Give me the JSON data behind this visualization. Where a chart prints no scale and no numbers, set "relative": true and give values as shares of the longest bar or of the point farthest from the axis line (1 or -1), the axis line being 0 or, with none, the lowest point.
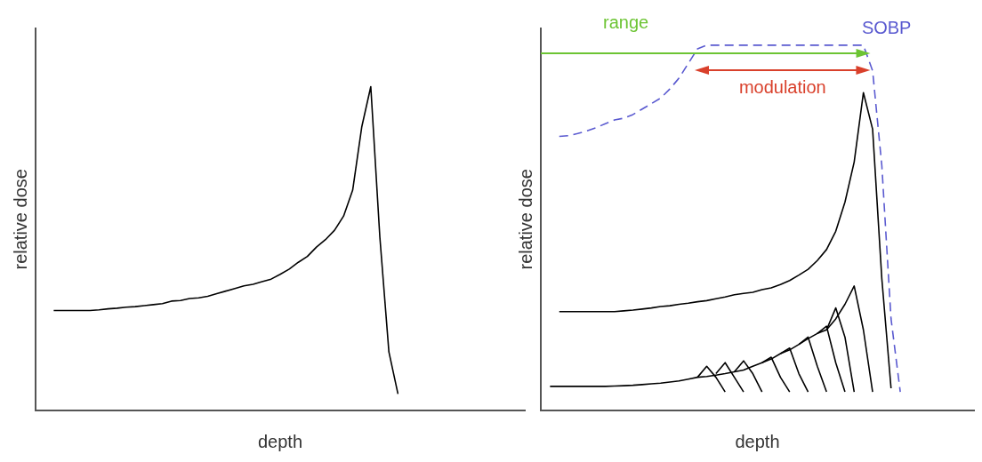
{
  "chart_data": [
    {
      "type": "line",
      "relative": true,
      "xlabel": "depth",
      "ylabel": "relative dose",
      "legend": false,
      "grid": false,
      "marker": "none",
      "categories": [
        null,
        null,
        null,
        null,
        null,
        null,
        null,
        null,
        null,
        null,
        null,
        null,
        null,
        null,
        null,
        null,
        null,
        null,
        null,
        null,
        null,
        null,
        null,
        null,
        null,
        null,
        null,
        null,
        null,
        null,
        null,
        null,
        null,
        null,
        null,
        null,
        null,
        null,
        null,
        null,
        null,
        null,
        null,
        null,
        null,
        null,
        null,
        null,
        null,
        null,
        null,
        null,
        null,
        null,
        null
      ],
      "series": [
        {
          "color": "#000000",
          "values": [
            null,
            null,
            0.308,
            0.308,
            0.308,
            0.308,
            0.308,
            0.31,
            0.313,
            0.315,
            0.318,
            0.32,
            0.323,
            0.326,
            0.329,
            0.337,
            0.339,
            0.345,
            0.347,
            0.352,
            0.36,
            0.368,
            0.376,
            0.384,
            0.389,
            0.397,
            0.405,
            0.42,
            0.436,
            0.457,
            0.475,
            0.504,
            0.527,
            0.556,
            0.6,
            0.68,
            0.875,
            1,
            0.535,
            0.18,
            0.05,
            null,
            null,
            null,
            null,
            null,
            null,
            null,
            null,
            null,
            null,
            null,
            null,
            null,
            null
          ]
        }
      ]
    },
    {
      "type": "line",
      "relative": true,
      "xlabel": "depth",
      "ylabel": "relative dose",
      "legend": false,
      "grid": false,
      "marker": "none",
      "annotations": [
        "range",
        "modulation"
      ],
      "categories": [
        null,
        null,
        null,
        null,
        null,
        null,
        null,
        null,
        null,
        null,
        null,
        null,
        null,
        null,
        null,
        null,
        null,
        null,
        null,
        null,
        null,
        null,
        null,
        null,
        null,
        null,
        null,
        null,
        null,
        null,
        null,
        null,
        null,
        null,
        null,
        null,
        null,
        null,
        null,
        null,
        null,
        null,
        null,
        null,
        null,
        null,
        null,
        null
      ],
      "series": [
        {
          "name": "SOBP",
          "color": "#5a5ad0",
          "line_style": "dashed",
          "values": [
            null,
            null,
            0.75,
            0.752,
            0.758,
            0.765,
            0.774,
            0.785,
            0.795,
            0.8,
            0.81,
            0.825,
            0.84,
            0.855,
            0.88,
            0.91,
            0.95,
            0.99,
            1,
            1,
            1,
            1,
            1,
            1,
            1,
            1,
            1,
            1,
            1,
            1,
            1,
            1,
            1,
            1,
            1,
            1,
            0.93,
            0.67,
            0.25,
            0.05,
            null,
            null,
            null,
            null,
            null,
            null,
            null,
            null
          ]
        },
        {
          "color": "#000000",
          "values": [
            null,
            null,
            0.27,
            0.27,
            0.27,
            0.27,
            0.27,
            0.27,
            0.27,
            0.272,
            0.274,
            0.277,
            0.28,
            0.284,
            0.286,
            0.29,
            0.293,
            0.297,
            0.3,
            0.305,
            0.31,
            0.316,
            0.32,
            0.323,
            0.33,
            0.335,
            0.344,
            0.355,
            0.37,
            0.386,
            0.41,
            0.44,
            0.49,
            0.57,
            0.68,
            0.87,
            0.77,
            0.36,
            0.06,
            null,
            null,
            null,
            null,
            null,
            null,
            null,
            null,
            null
          ]
        },
        {
          "color": "#000000",
          "values": [
            null,
            0.065,
            0.065,
            0.065,
            0.065,
            0.065,
            0.065,
            0.065,
            0.066,
            0.067,
            0.068,
            0.07,
            0.072,
            0.074,
            0.077,
            0.08,
            0.085,
            0.09,
            0.092,
            0.096,
            0.1,
            0.105,
            0.11,
            0.12,
            0.13,
            0.14,
            0.155,
            0.165,
            0.18,
            0.196,
            0.21,
            0.22,
            0.25,
            0.29,
            0.34,
            0.22,
            0.05,
            null,
            null,
            null,
            null,
            null,
            null,
            null,
            null,
            null,
            null,
            null
          ]
        },
        {
          "color": "#000000",
          "values": [
            null,
            null,
            null,
            null,
            null,
            null,
            null,
            null,
            null,
            null,
            null,
            null,
            null,
            null,
            null,
            null,
            null,
            0.09,
            0.12,
            0.09,
            0.05,
            null,
            null,
            null,
            null,
            null,
            null,
            null,
            null,
            null,
            null,
            null,
            null,
            null,
            null,
            null,
            null,
            null,
            null,
            null,
            null,
            null,
            null,
            null,
            null,
            null,
            null,
            null
          ]
        },
        {
          "color": "#000000",
          "values": [
            null,
            null,
            null,
            null,
            null,
            null,
            null,
            null,
            null,
            null,
            null,
            null,
            null,
            null,
            null,
            null,
            null,
            null,
            null,
            0.1,
            0.13,
            0.09,
            0.05,
            null,
            null,
            null,
            null,
            null,
            null,
            null,
            null,
            null,
            null,
            null,
            null,
            null,
            null,
            null,
            null,
            null,
            null,
            null,
            null,
            null,
            null,
            null,
            null,
            null
          ]
        },
        {
          "color": "#000000",
          "values": [
            null,
            null,
            null,
            null,
            null,
            null,
            null,
            null,
            null,
            null,
            null,
            null,
            null,
            null,
            null,
            null,
            null,
            null,
            null,
            null,
            null,
            0.105,
            0.135,
            0.1,
            0.05,
            null,
            null,
            null,
            null,
            null,
            null,
            null,
            null,
            null,
            null,
            null,
            null,
            null,
            null,
            null,
            null,
            null,
            null,
            null,
            null,
            null,
            null,
            null
          ]
        },
        {
          "color": "#000000",
          "values": [
            null,
            null,
            null,
            null,
            null,
            null,
            null,
            null,
            null,
            null,
            null,
            null,
            null,
            null,
            null,
            null,
            null,
            null,
            null,
            null,
            null,
            null,
            null,
            null,
            0.13,
            0.145,
            0.09,
            0.05,
            null,
            null,
            null,
            null,
            null,
            null,
            null,
            null,
            null,
            null,
            null,
            null,
            null,
            null,
            null,
            null,
            null,
            null,
            null,
            null
          ]
        },
        {
          "color": "#000000",
          "values": [
            null,
            null,
            null,
            null,
            null,
            null,
            null,
            null,
            null,
            null,
            null,
            null,
            null,
            null,
            null,
            null,
            null,
            null,
            null,
            null,
            null,
            null,
            null,
            null,
            null,
            null,
            0.155,
            0.17,
            0.1,
            0.05,
            null,
            null,
            null,
            null,
            null,
            null,
            null,
            null,
            null,
            null,
            null,
            null,
            null,
            null,
            null,
            null,
            null,
            null
          ]
        },
        {
          "color": "#000000",
          "values": [
            null,
            null,
            null,
            null,
            null,
            null,
            null,
            null,
            null,
            null,
            null,
            null,
            null,
            null,
            null,
            null,
            null,
            null,
            null,
            null,
            null,
            null,
            null,
            null,
            null,
            null,
            null,
            null,
            0.18,
            0.2,
            0.12,
            0.05,
            null,
            null,
            null,
            null,
            null,
            null,
            null,
            null,
            null,
            null,
            null,
            null,
            null,
            null,
            null,
            null
          ]
        },
        {
          "color": "#000000",
          "values": [
            null,
            null,
            null,
            null,
            null,
            null,
            null,
            null,
            null,
            null,
            null,
            null,
            null,
            null,
            null,
            null,
            null,
            null,
            null,
            null,
            null,
            null,
            null,
            null,
            null,
            null,
            null,
            null,
            null,
            null,
            0.21,
            0.23,
            0.13,
            0.05,
            null,
            null,
            null,
            null,
            null,
            null,
            null,
            null,
            null,
            null,
            null,
            null,
            null,
            null
          ]
        },
        {
          "color": "#000000",
          "values": [
            null,
            null,
            null,
            null,
            null,
            null,
            null,
            null,
            null,
            null,
            null,
            null,
            null,
            null,
            null,
            null,
            null,
            null,
            null,
            null,
            null,
            null,
            null,
            null,
            null,
            null,
            null,
            null,
            null,
            null,
            null,
            0.22,
            0.28,
            0.2,
            0.05,
            null,
            null,
            null,
            null,
            null,
            null,
            null,
            null,
            null,
            null,
            null,
            null,
            null
          ]
        }
      ]
    }
  ]
}
